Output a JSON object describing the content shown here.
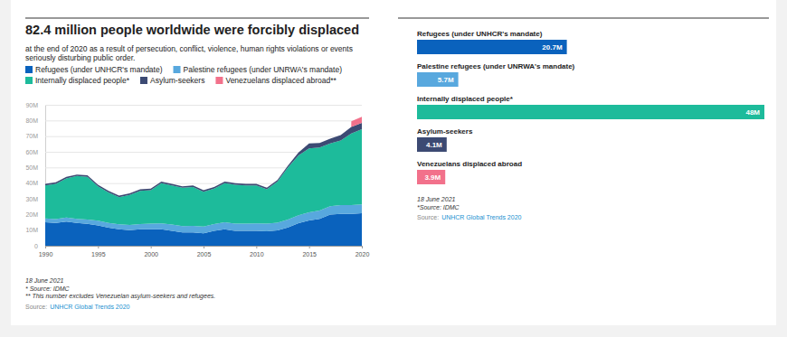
{
  "chart_data": [
    {
      "type": "area",
      "stacked": true,
      "grid": true,
      "legend": "top-left",
      "title": "82.4 million people worldwide were forcibly displaced",
      "subtitle": "at the end of 2020 as a result of persecution, conflict, violence, human rights violations or events seriously disturbing public order.",
      "x": [
        1990,
        1991,
        1992,
        1993,
        1994,
        1995,
        1996,
        1997,
        1998,
        1999,
        2000,
        2001,
        2002,
        2003,
        2004,
        2005,
        2006,
        2007,
        2008,
        2009,
        2010,
        2011,
        2012,
        2013,
        2014,
        2015,
        2016,
        2017,
        2018,
        2019,
        2020
      ],
      "xlim": [
        1990,
        2020
      ],
      "xticks": [
        1990,
        1995,
        2000,
        2005,
        2010,
        2015,
        2020
      ],
      "ylim": [
        0,
        90
      ],
      "yticks": [
        0,
        {
          "value": 10,
          "label": "10M"
        },
        {
          "value": 20,
          "label": "20M"
        },
        {
          "value": 30,
          "label": "30M"
        },
        {
          "value": 40,
          "label": "40M"
        },
        {
          "value": 50,
          "label": "50M"
        },
        {
          "value": 60,
          "label": "60M"
        },
        {
          "value": 70,
          "label": "70M"
        },
        {
          "value": 80,
          "label": "80M"
        },
        {
          "value": 90,
          "label": "90M"
        }
      ],
      "series": [
        {
          "name": "Refugees (under UNHCR's mandate)",
          "color": "#0a62bd",
          "values": [
            15,
            14.5,
            15.5,
            14.5,
            14,
            13,
            11.5,
            10.5,
            10,
            10.5,
            10.5,
            10.5,
            9.5,
            8.5,
            8.5,
            8,
            9.5,
            10.5,
            9.5,
            9.5,
            9.5,
            9.3,
            9.8,
            11.7,
            14.4,
            16.1,
            17.2,
            19.9,
            20.4,
            20.4,
            20.7
          ]
        },
        {
          "name": "Palestine refugees (under UNRWA's mandate)",
          "color": "#58a8de",
          "values": [
            2.4,
            2.5,
            2.6,
            2.7,
            2.8,
            3.0,
            3.1,
            3.2,
            3.3,
            3.4,
            3.6,
            3.8,
            4.0,
            4.1,
            4.2,
            4.3,
            4.4,
            4.5,
            4.6,
            4.7,
            4.8,
            4.9,
            4.9,
            5.0,
            5.1,
            5.2,
            5.3,
            5.4,
            5.5,
            5.6,
            5.7
          ]
        },
        {
          "name": "Internally displaced people*",
          "color": "#1dbb9b",
          "values": [
            21.1,
            22.5,
            24.9,
            27.3,
            27.2,
            22.0,
            19.4,
            17.3,
            19.2,
            21.1,
            21.4,
            25.7,
            25.0,
            24.4,
            24.8,
            22.2,
            22.6,
            25.0,
            24.9,
            24.3,
            24.2,
            21.8,
            26.3,
            33.3,
            38.2,
            40.8,
            40.3,
            40.0,
            41.3,
            45.7,
            48
          ]
        },
        {
          "name": "Asylum-seekers",
          "color": "#3c4a73",
          "values": [
            1.0,
            1.0,
            1.0,
            1.0,
            1.0,
            1.0,
            1.0,
            1.0,
            1.0,
            1.0,
            1.0,
            1.0,
            1.0,
            1.0,
            1.0,
            1.0,
            1.0,
            1.0,
            1.0,
            1.0,
            1.0,
            1.0,
            1.0,
            1.2,
            1.8,
            3.2,
            2.8,
            3.1,
            3.5,
            4.2,
            4.1
          ]
        },
        {
          "name": "Venezuelans displaced abroad**",
          "color": "#f2718b",
          "values": [
            null,
            null,
            null,
            null,
            null,
            null,
            null,
            null,
            null,
            null,
            null,
            null,
            null,
            null,
            null,
            null,
            null,
            null,
            null,
            null,
            null,
            null,
            null,
            null,
            null,
            null,
            null,
            null,
            null,
            3.6,
            3.9
          ]
        }
      ],
      "date": "18 June 2021",
      "footnotes": [
        "* Source: IDMC",
        "** This number excludes Venezuelan asylum-seekers and refugees."
      ],
      "source_label": "Source:",
      "source": "UNHCR Global Trends 2020"
    },
    {
      "type": "bar",
      "orientation": "horizontal",
      "data_labels": true,
      "tick_labels": false,
      "categories": [
        "Refugees (under UNHCR's mandate)",
        "Palestine refugees (under UNRWA's mandate)",
        "Internally displaced people*",
        "Asylum-seekers",
        "Venezuelans displaced abroad"
      ],
      "values": [
        20.7,
        5.7,
        48,
        4.1,
        3.9
      ],
      "value_labels": [
        "20.7M",
        "5.7M",
        "48M",
        "4.1M",
        "3.9M"
      ],
      "colors": [
        "#0a62bd",
        "#58a8de",
        "#1dbb9b",
        "#3c4a73",
        "#f2718b"
      ],
      "xlim": [
        0,
        48
      ],
      "date": "18 June 2021",
      "footnotes": [
        "*Source: IDMC"
      ],
      "source_label": "Source:",
      "source": "UNHCR Global Trends 2020"
    }
  ]
}
